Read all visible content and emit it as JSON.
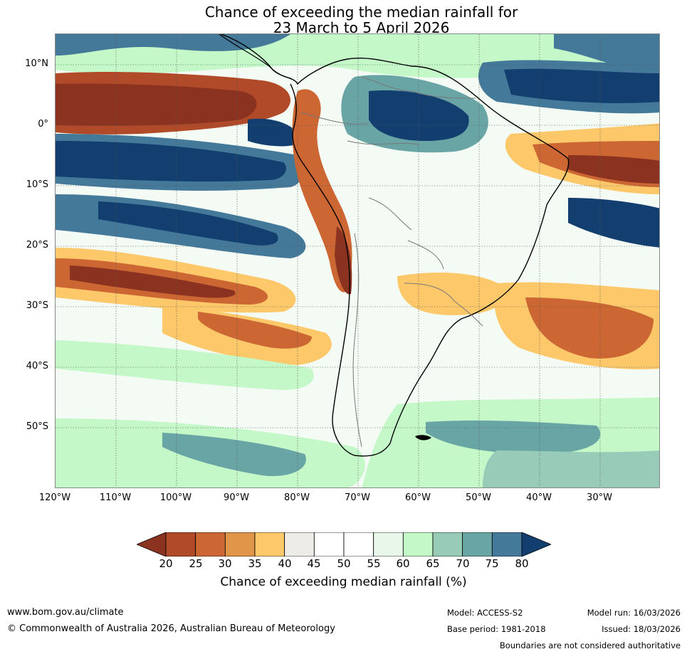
{
  "title": {
    "line1": "Chance of exceeding the median rainfall for",
    "line2": "23 March to 5 April 2026"
  },
  "map": {
    "latitude_labels": [
      "10°N",
      "0°",
      "10°S",
      "20°S",
      "30°S",
      "40°S",
      "50°S"
    ],
    "longitude_labels": [
      "120°W",
      "110°W",
      "100°W",
      "90°W",
      "80°W",
      "70°W",
      "60°W",
      "50°W",
      "40°W",
      "30°W"
    ]
  },
  "colorbar": {
    "ticks": [
      "20",
      "25",
      "30",
      "35",
      "40",
      "45",
      "50",
      "55",
      "60",
      "65",
      "70",
      "75",
      "80"
    ],
    "colors": [
      "#8b3320",
      "#b04a28",
      "#cc6633",
      "#e09548",
      "#fcc86a",
      "#eeece6",
      "#ffffff",
      "#ffffff",
      "#e9f7ea",
      "#c4f8c8",
      "#98ccb8",
      "#6aa5a6",
      "#447999",
      "#123f70"
    ],
    "label": "Chance of exceeding median rainfall (%)"
  },
  "footer": {
    "website": "www.bom.gov.au/climate",
    "copyright": "© Commonwealth of Australia 2026, Australian Bureau of Meteorology",
    "model": "Model: ACCESS-S2",
    "base_period": "Base period: 1981-2018",
    "model_run": "Model run: 16/03/2026",
    "issued": "Issued: 18/03/2026",
    "disclaimer": "Boundaries are not considered authoritative"
  }
}
